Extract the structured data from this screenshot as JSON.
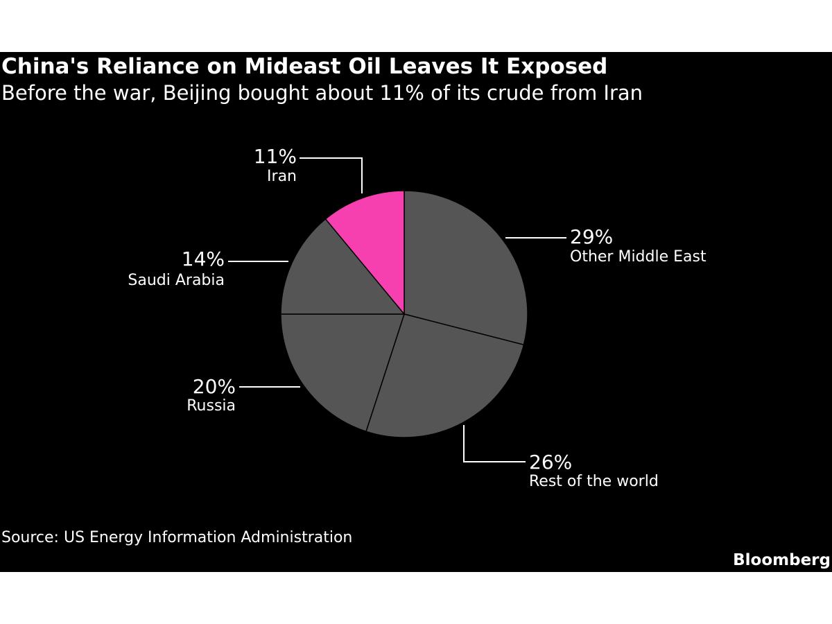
{
  "header": {
    "title": "China's Reliance on Mideast Oil Leaves It Exposed",
    "subtitle": "Before the war, Beijing bought about 11% of its crude from Iran"
  },
  "footer": {
    "source": "Source: US Energy Information Administration",
    "brand": "Bloomberg"
  },
  "colors": {
    "background": "#000000",
    "slice_default": "#555555",
    "slice_highlight": "#f740b0",
    "text": "#ffffff"
  },
  "chart_data": {
    "type": "pie",
    "title": "China's Reliance on Mideast Oil Leaves It Exposed",
    "start": "12 o'clock, clockwise",
    "slices": [
      {
        "label": "Other Middle East",
        "value": 29,
        "value_label": "29%",
        "highlight": false
      },
      {
        "label": "Rest of the world",
        "value": 26,
        "value_label": "26%",
        "highlight": false
      },
      {
        "label": "Russia",
        "value": 20,
        "value_label": "20%",
        "highlight": false
      },
      {
        "label": "Saudi Arabia",
        "value": 14,
        "value_label": "14%",
        "highlight": false
      },
      {
        "label": "Iran",
        "value": 11,
        "value_label": "11%",
        "highlight": true
      }
    ]
  }
}
